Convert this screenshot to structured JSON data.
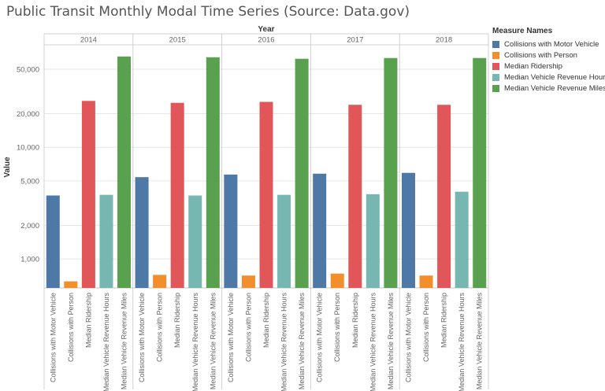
{
  "title": "Public Transit Monthly Modal Time Series (Source: Data.gov)",
  "chart_data": {
    "type": "bar",
    "scale": "log",
    "column_header": "Year",
    "ylabel": "Value",
    "years": [
      "2014",
      "2015",
      "2016",
      "2017",
      "2018"
    ],
    "measures": [
      "Collisions with Motor Vehicle",
      "Collisions with Person",
      "Median Ridership",
      "Median Vehicle Revenue Hours",
      "Median Vehicle Revenue Miles"
    ],
    "colors": [
      "#4e79a7",
      "#f28e2b",
      "#e15759",
      "#76b7b2",
      "#59a14f"
    ],
    "y_ticks": [
      1000,
      2000,
      5000,
      10000,
      20000,
      50000
    ],
    "y_tick_labels": [
      "1,000",
      "2,000",
      "5,000",
      "10,000",
      "20,000",
      "50,000"
    ],
    "ylim": [
      550,
      80000
    ],
    "series": [
      {
        "name": "Collisions with Motor Vehicle",
        "values": [
          3700,
          5400,
          5700,
          5800,
          5900
        ]
      },
      {
        "name": "Collisions with Person",
        "values": [
          630,
          720,
          710,
          740,
          710
        ]
      },
      {
        "name": "Median Ridership",
        "values": [
          26000,
          25000,
          25500,
          24000,
          24000
        ]
      },
      {
        "name": "Median Vehicle Revenue Hours",
        "values": [
          3750,
          3700,
          3750,
          3800,
          4000
        ]
      },
      {
        "name": "Median Vehicle Revenue Miles",
        "values": [
          65000,
          64000,
          62000,
          63000,
          63000
        ]
      }
    ],
    "legend": {
      "title": "Measure Names",
      "position": "right"
    }
  }
}
